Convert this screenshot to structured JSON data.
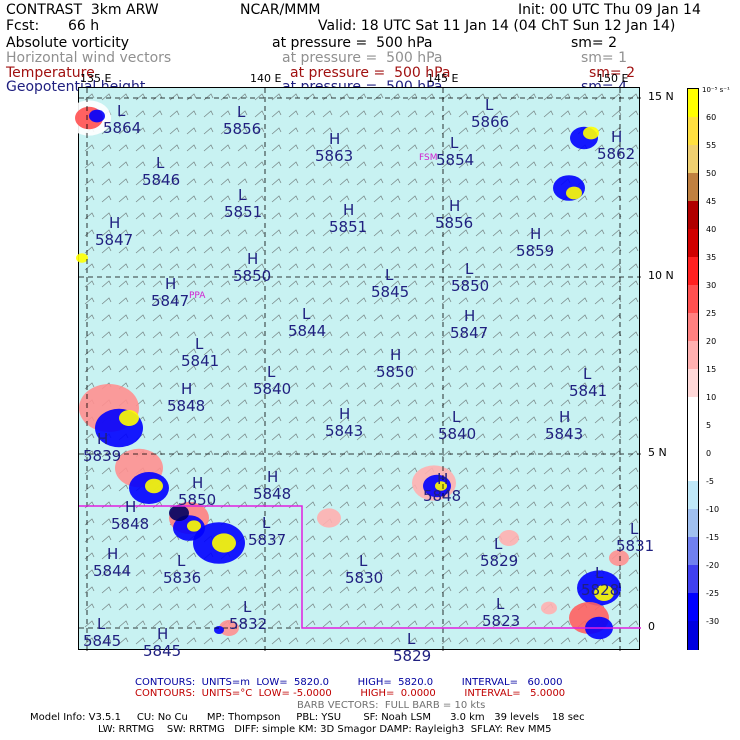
{
  "header": {
    "model": "CONTRAST  3km ARW",
    "org": "NCAR/MMM",
    "init": "Init: 00 UTC Thu 09 Jan 14",
    "fcst_label": "Fcst:",
    "fcst_value": "66 h",
    "valid": "Valid: 18 UTC Sat 11 Jan 14 (04 ChT Sun 12 Jan 14)",
    "fields": [
      {
        "name": "Absolute vorticity",
        "level": "at pressure =  500 hPa",
        "sm": "sm= 2",
        "color": "#000000"
      },
      {
        "name": "Horizontal wind vectors",
        "level": "at pressure =  500 hPa",
        "sm": "sm= 1",
        "color": "#909090"
      },
      {
        "name": "Temperature",
        "level": "at pressure =  500 hPa",
        "sm": "sm= 2",
        "color": "#a01010"
      },
      {
        "name": "Geopotential height",
        "level": "at pressure =  500 hPa",
        "sm": "sm= 4",
        "color": "#202080"
      }
    ]
  },
  "map": {
    "background_color": "#c8f2f2",
    "lat_labels": [
      "15 N",
      "10 N",
      "5 N",
      "0"
    ],
    "lon_labels": [
      "135 E",
      "140 E",
      "145 E",
      "150 E"
    ],
    "station_labels": [
      "FSM",
      "PPA"
    ],
    "centers": [
      {
        "t": "L",
        "v": "5864"
      },
      {
        "t": "L",
        "v": "5856"
      },
      {
        "t": "H",
        "v": "5863"
      },
      {
        "t": "L",
        "v": "5854"
      },
      {
        "t": "L",
        "v": "5866"
      },
      {
        "t": "H",
        "v": "5862"
      },
      {
        "t": "L",
        "v": "5846"
      },
      {
        "t": "L",
        "v": "5851"
      },
      {
        "t": "H",
        "v": "5851"
      },
      {
        "t": "H",
        "v": "5856"
      },
      {
        "t": "L",
        "v": "5850"
      },
      {
        "t": "H",
        "v": "5847"
      },
      {
        "t": "H",
        "v": "5850"
      },
      {
        "t": "H",
        "v": "5859"
      },
      {
        "t": "H",
        "v": "5847"
      },
      {
        "t": "L",
        "v": "5845"
      },
      {
        "t": "L",
        "v": "5844"
      },
      {
        "t": "H",
        "v": "5847"
      },
      {
        "t": "L",
        "v": "5841"
      },
      {
        "t": "H",
        "v": "5850"
      },
      {
        "t": "L",
        "v": "5840"
      },
      {
        "t": "L",
        "v": "5841"
      },
      {
        "t": "H",
        "v": "5848"
      },
      {
        "t": "H",
        "v": "5843"
      },
      {
        "t": "L",
        "v": "5840"
      },
      {
        "t": "H",
        "v": "5843"
      },
      {
        "t": "H",
        "v": "5848"
      },
      {
        "t": "H",
        "v": "5848"
      },
      {
        "t": "L",
        "v": "5837"
      },
      {
        "t": "H",
        "v": "5844"
      },
      {
        "t": "L",
        "v": "5836"
      },
      {
        "t": "L",
        "v": "5830"
      },
      {
        "t": "L",
        "v": "5829"
      },
      {
        "t": "L",
        "v": "5831"
      },
      {
        "t": "L",
        "v": "5828"
      },
      {
        "t": "L",
        "v": "5832"
      },
      {
        "t": "L",
        "v": "5823"
      },
      {
        "t": "L",
        "v": "5845"
      },
      {
        "t": "H",
        "v": "5845"
      },
      {
        "t": "L",
        "v": "5829"
      },
      {
        "t": "H",
        "v": "5839"
      },
      {
        "t": "H",
        "v": "5850"
      },
      {
        "t": "H",
        "v": "5848"
      }
    ]
  },
  "colorbar": {
    "units": "10⁻⁵ s⁻¹",
    "levels": [
      "60",
      "55",
      "50",
      "45",
      "40",
      "35",
      "30",
      "25",
      "20",
      "15",
      "10",
      "5",
      "0",
      "-5",
      "-10",
      "-15",
      "-20",
      "-25",
      "-30"
    ],
    "colors": [
      "#ffff00",
      "#ffe040",
      "#f0d070",
      "#c08040",
      "#b00000",
      "#d00000",
      "#ff2020",
      "#ff5050",
      "#ff8080",
      "#ffb0b0",
      "#ffd8d8",
      "#ffffff",
      "#ffffff",
      "#ffffff",
      "#c0e8f8",
      "#a0c0f0",
      "#7080f0",
      "#4040f0",
      "#0000ff",
      "#0000e0"
    ]
  },
  "footer": {
    "contours1": "CONTOURS:  UNITS=m  LOW=  5820.0         HIGH=  5820.0         INTERVAL=   60.000",
    "contours2": "CONTOURS:  UNITS=°C  LOW= -5.0000         HIGH=  0.0000         INTERVAL=   5.0000",
    "barb": "BARB VECTORS:  FULL BARB = 10 kts",
    "model1": "Model Info: V3.5.1     CU: No Cu      MP: Thompson     PBL: YSU       SF: Noah LSM      3.0 km   39 levels    18 sec",
    "model2": "LW: RRTMG    SW: RRTMG   DIFF: simple KM: 3D Smagor DAMP: Rayleigh3  SFLAY: Rev MM5"
  }
}
